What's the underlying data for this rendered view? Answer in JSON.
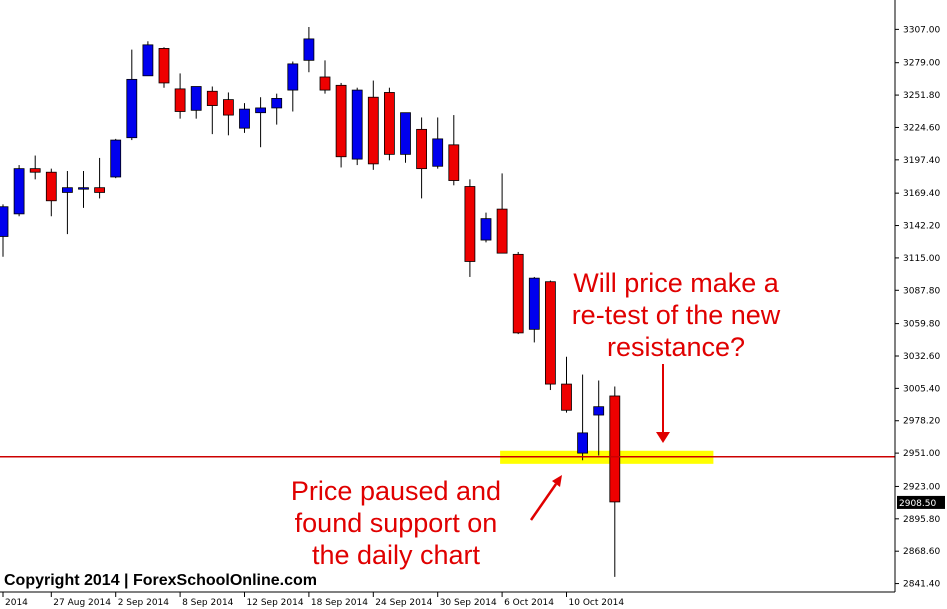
{
  "chart_data": {
    "type": "candlestick",
    "y_ticks": [
      "3307.00",
      "3279.00",
      "3251.80",
      "3224.60",
      "3197.40",
      "3169.40",
      "3142.20",
      "3115.00",
      "3087.80",
      "3059.80",
      "3032.60",
      "3005.40",
      "2978.20",
      "2951.00",
      "2923.00",
      "2895.80",
      "2868.60",
      "2841.40"
    ],
    "ylim": [
      2836,
      3330
    ],
    "x_ticks": [
      {
        "label": "2014",
        "index": 0
      },
      {
        "label": "27 Aug 2014",
        "index": 3
      },
      {
        "label": "2 Sep 2014",
        "index": 7
      },
      {
        "label": "8 Sep 2014",
        "index": 11
      },
      {
        "label": "12 Sep 2014",
        "index": 15
      },
      {
        "label": "18 Sep 2014",
        "index": 19
      },
      {
        "label": "24 Sep 2014",
        "index": 23
      },
      {
        "label": "30 Sep 2014",
        "index": 27
      },
      {
        "label": "6 Oct 2014",
        "index": 31
      },
      {
        "label": "10 Oct 2014",
        "index": 35
      }
    ],
    "current_price": "2908.50",
    "support_level": 2948,
    "support_zone": {
      "from_index": 31,
      "to_index": 44,
      "low": 2942,
      "high": 2953
    },
    "candles": [
      {
        "o": 3133,
        "h": 3160,
        "l": 3116,
        "c": 3158
      },
      {
        "o": 3152,
        "h": 3193,
        "l": 3150,
        "c": 3190
      },
      {
        "o": 3190,
        "h": 3201,
        "l": 3181,
        "c": 3187
      },
      {
        "o": 3187,
        "h": 3190,
        "l": 3150,
        "c": 3163
      },
      {
        "o": 3170,
        "h": 3188,
        "l": 3135,
        "c": 3174
      },
      {
        "o": 3173,
        "h": 3188,
        "l": 3157,
        "c": 3174
      },
      {
        "o": 3174,
        "h": 3199,
        "l": 3165,
        "c": 3170
      },
      {
        "o": 3183,
        "h": 3215,
        "l": 3182,
        "c": 3214
      },
      {
        "o": 3216,
        "h": 3290,
        "l": 3214,
        "c": 3265
      },
      {
        "o": 3268,
        "h": 3297,
        "l": 3268,
        "c": 3294
      },
      {
        "o": 3291,
        "h": 3292,
        "l": 3258,
        "c": 3262
      },
      {
        "o": 3257,
        "h": 3270,
        "l": 3232,
        "c": 3238
      },
      {
        "o": 3239,
        "h": 3257,
        "l": 3232,
        "c": 3259
      },
      {
        "o": 3255,
        "h": 3259,
        "l": 3219,
        "c": 3243
      },
      {
        "o": 3248,
        "h": 3254,
        "l": 3218,
        "c": 3235
      },
      {
        "o": 3224,
        "h": 3245,
        "l": 3220,
        "c": 3240
      },
      {
        "o": 3237,
        "h": 3250,
        "l": 3208,
        "c": 3241
      },
      {
        "o": 3241,
        "h": 3253,
        "l": 3227,
        "c": 3249
      },
      {
        "o": 3256,
        "h": 3280,
        "l": 3238,
        "c": 3278
      },
      {
        "o": 3281,
        "h": 3309,
        "l": 3271,
        "c": 3299
      },
      {
        "o": 3267,
        "h": 3281,
        "l": 3253,
        "c": 3256
      },
      {
        "o": 3260,
        "h": 3262,
        "l": 3191,
        "c": 3200
      },
      {
        "o": 3198,
        "h": 3258,
        "l": 3193,
        "c": 3256
      },
      {
        "o": 3250,
        "h": 3264,
        "l": 3189,
        "c": 3194
      },
      {
        "o": 3254,
        "h": 3258,
        "l": 3197,
        "c": 3202
      },
      {
        "o": 3202,
        "h": 3237,
        "l": 3195,
        "c": 3237
      },
      {
        "o": 3223,
        "h": 3233,
        "l": 3165,
        "c": 3190
      },
      {
        "o": 3192,
        "h": 3233,
        "l": 3190,
        "c": 3215
      },
      {
        "o": 3210,
        "h": 3235,
        "l": 3176,
        "c": 3180
      },
      {
        "o": 3175,
        "h": 3181,
        "l": 3099,
        "c": 3112
      },
      {
        "o": 3130,
        "h": 3153,
        "l": 3128,
        "c": 3148
      },
      {
        "o": 3156,
        "h": 3186,
        "l": 3120,
        "c": 3119
      },
      {
        "o": 3118,
        "h": 3120,
        "l": 3051,
        "c": 3052
      },
      {
        "o": 3055,
        "h": 3099,
        "l": 3044,
        "c": 3098
      },
      {
        "o": 3095,
        "h": 3096,
        "l": 3004,
        "c": 3009
      },
      {
        "o": 3009,
        "h": 3032,
        "l": 2985,
        "c": 2987
      },
      {
        "o": 2951,
        "h": 3017,
        "l": 2945,
        "c": 2968
      },
      {
        "o": 2983,
        "h": 3012,
        "l": 2949,
        "c": 2990
      },
      {
        "o": 2999,
        "h": 3007,
        "l": 2847,
        "c": 2910
      }
    ]
  },
  "annotations": {
    "question_lines": [
      "Will price make a",
      "re-test of the new",
      "resistance?"
    ],
    "support_lines": [
      "Price paused and",
      "found support on",
      "the daily chart"
    ]
  },
  "copyright": "Copyright 2014 | ForexSchoolOnline.com",
  "colors": {
    "bull": "#0000ee",
    "bear": "#ee0000",
    "line": "#cc0000",
    "zone": "#ffff00",
    "annotation": "#e00000"
  }
}
